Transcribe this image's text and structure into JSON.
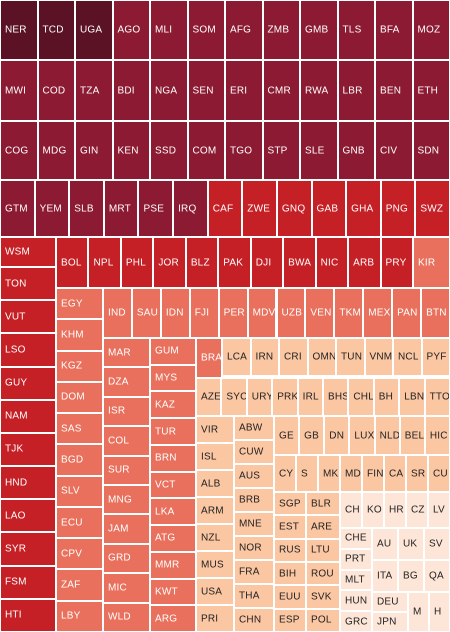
{
  "chart_data": {
    "type": "treemap",
    "color_scale": [
      "#5a1224",
      "#8b1a32",
      "#c42026",
      "#e8705c",
      "#fbc6a2",
      "#fde6d8"
    ],
    "cells": [
      {
        "label": "NER",
        "value": 1.0
      },
      {
        "label": "TCD",
        "value": 0.98
      },
      {
        "label": "UGA",
        "value": 0.97
      },
      {
        "label": "AGO",
        "value": 0.9
      },
      {
        "label": "MLI",
        "value": 0.9
      },
      {
        "label": "SOM",
        "value": 0.9
      },
      {
        "label": "AFG",
        "value": 0.89
      },
      {
        "label": "ZMB",
        "value": 0.89
      },
      {
        "label": "GMB",
        "value": 0.88
      },
      {
        "label": "TLS",
        "value": 0.88
      },
      {
        "label": "BFA",
        "value": 0.88
      },
      {
        "label": "MOZ",
        "value": 0.88
      },
      {
        "label": "MWI",
        "value": 0.87
      },
      {
        "label": "COD",
        "value": 0.87
      },
      {
        "label": "TZA",
        "value": 0.87
      },
      {
        "label": "BDI",
        "value": 0.86
      },
      {
        "label": "NGA",
        "value": 0.86
      },
      {
        "label": "SEN",
        "value": 0.86
      },
      {
        "label": "ERI",
        "value": 0.86
      },
      {
        "label": "CMR",
        "value": 0.85
      },
      {
        "label": "RWA",
        "value": 0.85
      },
      {
        "label": "LBR",
        "value": 0.85
      },
      {
        "label": "BEN",
        "value": 0.85
      },
      {
        "label": "ETH",
        "value": 0.85
      },
      {
        "label": "COG",
        "value": 0.84
      },
      {
        "label": "MDG",
        "value": 0.84
      },
      {
        "label": "GIN",
        "value": 0.84
      },
      {
        "label": "KEN",
        "value": 0.84
      },
      {
        "label": "SSD",
        "value": 0.84
      },
      {
        "label": "COM",
        "value": 0.83
      },
      {
        "label": "TGO",
        "value": 0.83
      },
      {
        "label": "STP",
        "value": 0.83
      },
      {
        "label": "SLE",
        "value": 0.83
      },
      {
        "label": "GNB",
        "value": 0.83
      },
      {
        "label": "CIV",
        "value": 0.83
      },
      {
        "label": "SDN",
        "value": 0.82
      },
      {
        "label": "GTM",
        "value": 0.82
      },
      {
        "label": "YEM",
        "value": 0.82
      },
      {
        "label": "SLB",
        "value": 0.81
      },
      {
        "label": "MRT",
        "value": 0.81
      },
      {
        "label": "PSE",
        "value": 0.81
      },
      {
        "label": "IRQ",
        "value": 0.8
      },
      {
        "label": "CAF",
        "value": 0.78
      },
      {
        "label": "ZWE",
        "value": 0.78
      },
      {
        "label": "GNQ",
        "value": 0.78
      },
      {
        "label": "GAB",
        "value": 0.77
      },
      {
        "label": "GHA",
        "value": 0.77
      },
      {
        "label": "PNG",
        "value": 0.77
      },
      {
        "label": "SWZ",
        "value": 0.76
      },
      {
        "label": "WSM",
        "value": 0.74
      },
      {
        "label": "BOL",
        "value": 0.74
      },
      {
        "label": "NPL",
        "value": 0.74
      },
      {
        "label": "PHL",
        "value": 0.74
      },
      {
        "label": "JOR",
        "value": 0.74
      },
      {
        "label": "BLZ",
        "value": 0.74
      },
      {
        "label": "PAK",
        "value": 0.73
      },
      {
        "label": "DJI",
        "value": 0.73
      },
      {
        "label": "BWA",
        "value": 0.73
      },
      {
        "label": "NIC",
        "value": 0.73
      },
      {
        "label": "ARB",
        "value": 0.72
      },
      {
        "label": "PRY",
        "value": 0.72
      },
      {
        "label": "KIR",
        "value": 0.62
      },
      {
        "label": "TON",
        "value": 0.72
      },
      {
        "label": "VUT",
        "value": 0.72
      },
      {
        "label": "LSO",
        "value": 0.72
      },
      {
        "label": "GUY",
        "value": 0.72
      },
      {
        "label": "NAM",
        "value": 0.72
      },
      {
        "label": "TJK",
        "value": 0.72
      },
      {
        "label": "HND",
        "value": 0.71
      },
      {
        "label": "LAO",
        "value": 0.71
      },
      {
        "label": "SYR",
        "value": 0.71
      },
      {
        "label": "FSM",
        "value": 0.71
      },
      {
        "label": "HTI",
        "value": 0.71
      },
      {
        "label": "EGY",
        "value": 0.6
      },
      {
        "label": "KHM",
        "value": 0.6
      },
      {
        "label": "KGZ",
        "value": 0.6
      },
      {
        "label": "DOM",
        "value": 0.6
      },
      {
        "label": "SAS",
        "value": 0.6
      },
      {
        "label": "BGD",
        "value": 0.59
      },
      {
        "label": "SLV",
        "value": 0.59
      },
      {
        "label": "ECU",
        "value": 0.59
      },
      {
        "label": "CPV",
        "value": 0.59
      },
      {
        "label": "ZAF",
        "value": 0.58
      },
      {
        "label": "LBY",
        "value": 0.58
      },
      {
        "label": "IND",
        "value": 0.6
      },
      {
        "label": "SAU",
        "value": 0.6
      },
      {
        "label": "IDN",
        "value": 0.6
      },
      {
        "label": "FJI",
        "value": 0.6
      },
      {
        "label": "PER",
        "value": 0.6
      },
      {
        "label": "MDV",
        "value": 0.6
      },
      {
        "label": "UZB",
        "value": 0.6
      },
      {
        "label": "VEN",
        "value": 0.6
      },
      {
        "label": "TKM",
        "value": 0.6
      },
      {
        "label": "MEX",
        "value": 0.6
      },
      {
        "label": "PAN",
        "value": 0.6
      },
      {
        "label": "BTN",
        "value": 0.6
      },
      {
        "label": "MAR",
        "value": 0.58
      },
      {
        "label": "DZA",
        "value": 0.58
      },
      {
        "label": "ISR",
        "value": 0.58
      },
      {
        "label": "COL",
        "value": 0.58
      },
      {
        "label": "SUR",
        "value": 0.58
      },
      {
        "label": "MNG",
        "value": 0.58
      },
      {
        "label": "JAM",
        "value": 0.58
      },
      {
        "label": "GRD",
        "value": 0.57
      },
      {
        "label": "MIC",
        "value": 0.57
      },
      {
        "label": "WLD",
        "value": 0.57
      },
      {
        "label": "GUM",
        "value": 0.57
      },
      {
        "label": "MYS",
        "value": 0.57
      },
      {
        "label": "KAZ",
        "value": 0.57
      },
      {
        "label": "TUR",
        "value": 0.57
      },
      {
        "label": "BRN",
        "value": 0.57
      },
      {
        "label": "VCT",
        "value": 0.57
      },
      {
        "label": "LKA",
        "value": 0.57
      },
      {
        "label": "ATG",
        "value": 0.57
      },
      {
        "label": "MMR",
        "value": 0.57
      },
      {
        "label": "KWT",
        "value": 0.57
      },
      {
        "label": "ARG",
        "value": 0.57
      },
      {
        "label": "BRA",
        "value": 0.56
      },
      {
        "label": "LCA",
        "value": 0.42
      },
      {
        "label": "IRN",
        "value": 0.42
      },
      {
        "label": "CRI",
        "value": 0.42
      },
      {
        "label": "OMN",
        "value": 0.42
      },
      {
        "label": "TUN",
        "value": 0.42
      },
      {
        "label": "VNM",
        "value": 0.42
      },
      {
        "label": "NCL",
        "value": 0.42
      },
      {
        "label": "PYF",
        "value": 0.42
      },
      {
        "label": "AZE",
        "value": 0.41
      },
      {
        "label": "SYC",
        "value": 0.41
      },
      {
        "label": "URY",
        "value": 0.41
      },
      {
        "label": "PRK",
        "value": 0.41
      },
      {
        "label": "IRL",
        "value": 0.41
      },
      {
        "label": "BHS",
        "value": 0.41
      },
      {
        "label": "CHL",
        "value": 0.41
      },
      {
        "label": "BH",
        "value": 0.41
      },
      {
        "label": "LBN",
        "value": 0.41
      },
      {
        "label": "TTO",
        "value": 0.41
      },
      {
        "label": "VIR",
        "value": 0.4
      },
      {
        "label": "ISL",
        "value": 0.4
      },
      {
        "label": "ALB",
        "value": 0.4
      },
      {
        "label": "ARM",
        "value": 0.4
      },
      {
        "label": "NZL",
        "value": 0.4
      },
      {
        "label": "MUS",
        "value": 0.4
      },
      {
        "label": "USA",
        "value": 0.4
      },
      {
        "label": "PRI",
        "value": 0.4
      },
      {
        "label": "ABW",
        "value": 0.4
      },
      {
        "label": "CUW",
        "value": 0.4
      },
      {
        "label": "AUS",
        "value": 0.4
      },
      {
        "label": "BRB",
        "value": 0.4
      },
      {
        "label": "MNE",
        "value": 0.39
      },
      {
        "label": "NOR",
        "value": 0.39
      },
      {
        "label": "FRA",
        "value": 0.39
      },
      {
        "label": "THA",
        "value": 0.39
      },
      {
        "label": "CHN",
        "value": 0.39
      },
      {
        "label": "GE",
        "value": 0.39
      },
      {
        "label": "GB",
        "value": 0.39
      },
      {
        "label": "DN",
        "value": 0.39
      },
      {
        "label": "LUX",
        "value": 0.39
      },
      {
        "label": "NLD",
        "value": 0.39
      },
      {
        "label": "BEL",
        "value": 0.39
      },
      {
        "label": "HIC",
        "value": 0.39
      },
      {
        "label": "CY",
        "value": 0.38
      },
      {
        "label": "S",
        "value": 0.38
      },
      {
        "label": "MK",
        "value": 0.38
      },
      {
        "label": "MD",
        "value": 0.38
      },
      {
        "label": "FIN",
        "value": 0.38
      },
      {
        "label": "CA",
        "value": 0.38
      },
      {
        "label": "SR",
        "value": 0.38
      },
      {
        "label": "CU",
        "value": 0.38
      },
      {
        "label": "SGP",
        "value": 0.38
      },
      {
        "label": "EST",
        "value": 0.38
      },
      {
        "label": "RUS",
        "value": 0.38
      },
      {
        "label": "BIH",
        "value": 0.38
      },
      {
        "label": "EUU",
        "value": 0.38
      },
      {
        "label": "ESP",
        "value": 0.38
      },
      {
        "label": "BLR",
        "value": 0.38
      },
      {
        "label": "ARE",
        "value": 0.38
      },
      {
        "label": "LTU",
        "value": 0.38
      },
      {
        "label": "ROU",
        "value": 0.38
      },
      {
        "label": "SVK",
        "value": 0.38
      },
      {
        "label": "POL",
        "value": 0.38
      },
      {
        "label": "CH",
        "value": 0.3
      },
      {
        "label": "KO",
        "value": 0.3
      },
      {
        "label": "HR",
        "value": 0.3
      },
      {
        "label": "CZ",
        "value": 0.3
      },
      {
        "label": "LV",
        "value": 0.3
      },
      {
        "label": "CHE",
        "value": 0.29
      },
      {
        "label": "PRT",
        "value": 0.29
      },
      {
        "label": "MLT",
        "value": 0.29
      },
      {
        "label": "HUN",
        "value": 0.29
      },
      {
        "label": "GRC",
        "value": 0.29
      },
      {
        "label": "AU",
        "value": 0.29
      },
      {
        "label": "UK",
        "value": 0.29
      },
      {
        "label": "SV",
        "value": 0.29
      },
      {
        "label": "ITA",
        "value": 0.29
      },
      {
        "label": "BG",
        "value": 0.29
      },
      {
        "label": "QA",
        "value": 0.29
      },
      {
        "label": "DEU",
        "value": 0.28
      },
      {
        "label": "JPN",
        "value": 0.28
      },
      {
        "label": "M",
        "value": 0.28
      },
      {
        "label": "H",
        "value": 0.28
      }
    ]
  }
}
